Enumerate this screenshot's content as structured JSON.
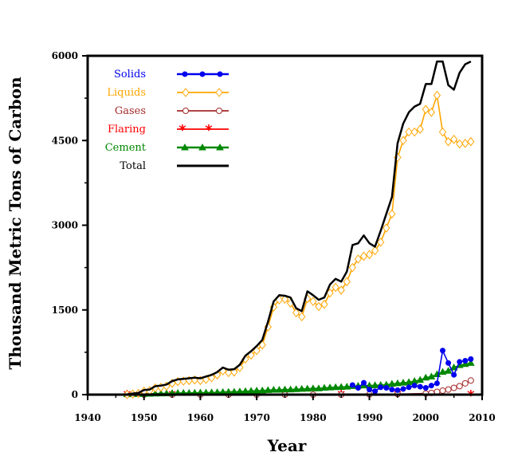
{
  "chart_data": {
    "type": "line",
    "title": "",
    "xlabel": "Year",
    "ylabel": "Thousand Metric Tons of Carbon",
    "xlim": [
      1940,
      2010
    ],
    "ylim": [
      0,
      6000
    ],
    "xticks": [
      "1940",
      "1950",
      "1960",
      "1970",
      "1980",
      "1990",
      "2000",
      "2010"
    ],
    "yticks": [
      "0",
      "1500",
      "3000",
      "4500",
      "6000"
    ],
    "legend_position": "top-left",
    "grid": false,
    "series": [
      {
        "name": "Solids",
        "color": "#0000ee",
        "marker": "dot",
        "x": [
          1987,
          1988,
          1989,
          1990,
          1991,
          1992,
          1993,
          1994,
          1995,
          1996,
          1997,
          1998,
          1999,
          2000,
          2001,
          2002,
          2003,
          2004,
          2005,
          2006,
          2007,
          2008
        ],
        "y": [
          170,
          120,
          210,
          90,
          60,
          130,
          120,
          90,
          80,
          100,
          130,
          160,
          140,
          120,
          160,
          200,
          780,
          560,
          350,
          580,
          600,
          630
        ]
      },
      {
        "name": "Liquids",
        "color": "#ffa500",
        "marker": "diamond",
        "x": [
          1947,
          1948,
          1949,
          1950,
          1951,
          1952,
          1953,
          1954,
          1955,
          1956,
          1957,
          1958,
          1959,
          1960,
          1961,
          1962,
          1963,
          1964,
          1965,
          1966,
          1967,
          1968,
          1969,
          1970,
          1971,
          1972,
          1973,
          1974,
          1975,
          1976,
          1977,
          1978,
          1979,
          1980,
          1981,
          1982,
          1983,
          1984,
          1985,
          1986,
          1987,
          1988,
          1989,
          1990,
          1991,
          1992,
          1993,
          1994,
          1995,
          1996,
          1997,
          1998,
          1999,
          2000,
          2001,
          2002,
          2003,
          2004,
          2005,
          2006,
          2007,
          2008
        ],
        "y": [
          0,
          10,
          20,
          60,
          70,
          120,
          130,
          150,
          200,
          230,
          240,
          250,
          260,
          250,
          270,
          300,
          350,
          420,
          390,
          400,
          480,
          630,
          700,
          780,
          880,
          1200,
          1550,
          1680,
          1690,
          1620,
          1450,
          1380,
          1700,
          1650,
          1560,
          1600,
          1800,
          1900,
          1850,
          2000,
          2250,
          2400,
          2450,
          2480,
          2550,
          2700,
          2950,
          3200,
          4200,
          4500,
          4650,
          4650,
          4700,
          5050,
          5000,
          5300,
          4650,
          4480,
          4520,
          4440,
          4450,
          4480
        ]
      },
      {
        "name": "Gases",
        "color": "#a52a2a",
        "marker": "circle",
        "x": [
          1947,
          1950,
          1955,
          1960,
          1965,
          1970,
          1975,
          1980,
          1985,
          1990,
          1995,
          2000,
          2001,
          2002,
          2003,
          2004,
          2005,
          2006,
          2007,
          2008
        ],
        "y": [
          0,
          0,
          0,
          0,
          0,
          0,
          0,
          0,
          0,
          5,
          10,
          20,
          30,
          50,
          70,
          90,
          120,
          150,
          200,
          250
        ]
      },
      {
        "name": "Flaring",
        "color": "#ff0000",
        "marker": "asterisk",
        "x": [
          1947,
          1955,
          1965,
          1975,
          1985,
          1995,
          2008
        ],
        "y": [
          0,
          0,
          0,
          0,
          0,
          0,
          0
        ]
      },
      {
        "name": "Cement",
        "color": "#008800",
        "marker": "triangle",
        "x": [
          1947,
          1948,
          1949,
          1950,
          1951,
          1952,
          1953,
          1954,
          1955,
          1956,
          1957,
          1958,
          1959,
          1960,
          1961,
          1962,
          1963,
          1964,
          1965,
          1966,
          1967,
          1968,
          1969,
          1970,
          1971,
          1972,
          1973,
          1974,
          1975,
          1976,
          1977,
          1978,
          1979,
          1980,
          1981,
          1982,
          1983,
          1984,
          1985,
          1986,
          1987,
          1988,
          1989,
          1990,
          1991,
          1992,
          1993,
          1994,
          1995,
          1996,
          1997,
          1998,
          1999,
          2000,
          2001,
          2002,
          2003,
          2004,
          2005,
          2006,
          2007,
          2008
        ],
        "y": [
          5,
          8,
          10,
          12,
          15,
          18,
          20,
          22,
          25,
          28,
          30,
          30,
          32,
          35,
          35,
          38,
          40,
          45,
          48,
          50,
          55,
          60,
          65,
          70,
          72,
          80,
          85,
          85,
          90,
          90,
          95,
          100,
          105,
          110,
          110,
          120,
          125,
          130,
          135,
          140,
          150,
          155,
          160,
          160,
          165,
          170,
          175,
          190,
          200,
          210,
          220,
          240,
          260,
          300,
          320,
          360,
          400,
          420,
          480,
          520,
          540,
          560
        ]
      },
      {
        "name": "Total",
        "color": "#000000",
        "marker": "none",
        "x": [
          1947,
          1948,
          1949,
          1950,
          1951,
          1952,
          1953,
          1954,
          1955,
          1956,
          1957,
          1958,
          1959,
          1960,
          1961,
          1962,
          1963,
          1964,
          1965,
          1966,
          1967,
          1968,
          1969,
          1970,
          1971,
          1972,
          1973,
          1974,
          1975,
          1976,
          1977,
          1978,
          1979,
          1980,
          1981,
          1982,
          1983,
          1984,
          1985,
          1986,
          1987,
          1988,
          1989,
          1990,
          1991,
          1992,
          1993,
          1994,
          1995,
          1996,
          1997,
          1998,
          1999,
          2000,
          2001,
          2002,
          2003,
          2004,
          2005,
          2006,
          2007,
          2008
        ],
        "y": [
          5,
          20,
          30,
          80,
          90,
          150,
          160,
          180,
          240,
          270,
          280,
          290,
          300,
          290,
          320,
          350,
          400,
          480,
          440,
          450,
          530,
          690,
          770,
          860,
          970,
          1290,
          1650,
          1760,
          1750,
          1720,
          1530,
          1480,
          1830,
          1760,
          1680,
          1720,
          1950,
          2050,
          2000,
          2180,
          2650,
          2680,
          2820,
          2680,
          2620,
          2900,
          3200,
          3500,
          4450,
          4800,
          5000,
          5100,
          5150,
          5500,
          5500,
          5900,
          5900,
          5480,
          5400,
          5700,
          5850,
          5900
        ]
      }
    ]
  }
}
